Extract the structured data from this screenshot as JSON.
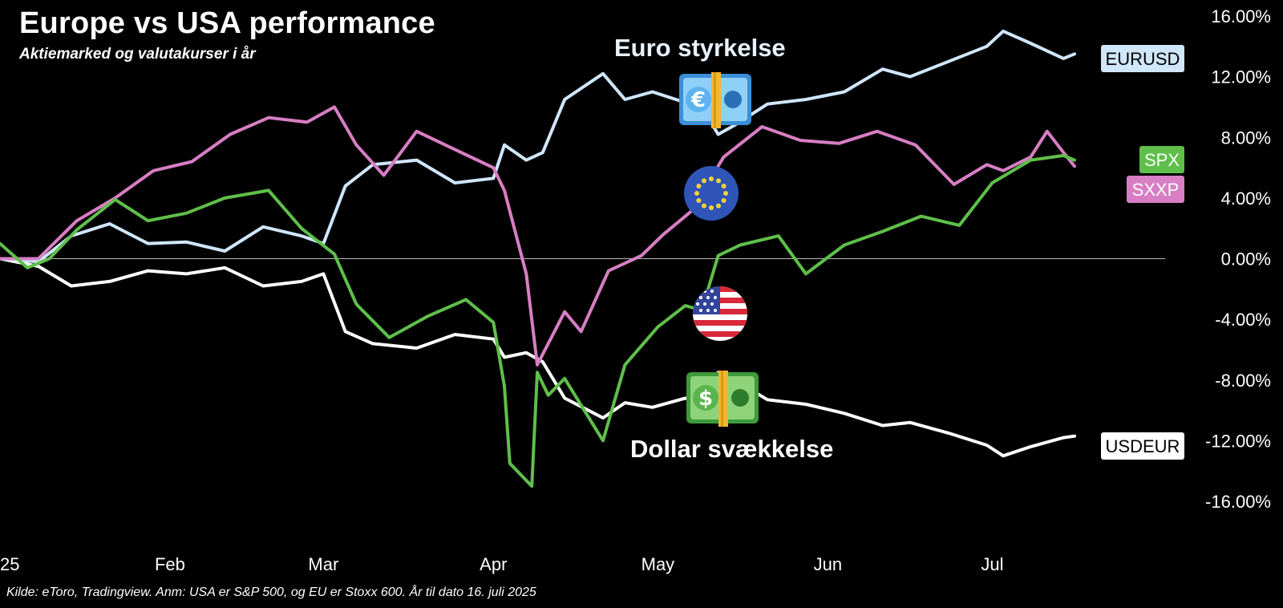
{
  "header": {
    "title": "Europe vs USA performance",
    "subtitle": "Aktiemarked og valutakurser i år"
  },
  "annotations": {
    "euro": "Euro styrkelse",
    "dollar": "Dollar svækkelse"
  },
  "icons": [
    "euro-banknote-icon",
    "eu-flag-icon",
    "us-flag-icon",
    "dollar-banknote-icon"
  ],
  "colors": {
    "background": "#000000",
    "EURUSD": "#cfe6fb",
    "USDEUR": "#ffffff",
    "SPX": "#5fbf4a",
    "SXXP": "#d77ec4",
    "zero_line": "#bbbbbb"
  },
  "footer": {
    "source": "Kilde: eToro, Tradingview. Anm: USA er S&P 500, og EU er Stoxx 600. År til dato 16. juli 2025"
  },
  "chart_data": {
    "type": "line",
    "title": "Europe vs USA performance",
    "subtitle": "Aktiemarked og valutakurser i år",
    "x_unit": "date",
    "x_ticks": [
      {
        "date": "2025-01-01",
        "label": "25"
      },
      {
        "date": "2025-02-01",
        "label": "Feb"
      },
      {
        "date": "2025-03-01",
        "label": "Mar"
      },
      {
        "date": "2025-04-01",
        "label": "Apr"
      },
      {
        "date": "2025-05-01",
        "label": "May"
      },
      {
        "date": "2025-06-01",
        "label": "Jun"
      },
      {
        "date": "2025-07-01",
        "label": "Jul"
      }
    ],
    "y_ticks": [
      "16.00%",
      "12.00%",
      "8.00%",
      "4.00%",
      "0.00%",
      "-4.00%",
      "-8.00%",
      "-12.00%",
      "-16.00%"
    ],
    "y_tick_values": [
      16,
      12,
      8,
      4,
      0,
      -4,
      -8,
      -12,
      -16
    ],
    "ylim": [
      -17,
      16
    ],
    "y_unit": "%",
    "grid": false,
    "zero_line": true,
    "series": [
      {
        "name": "EURUSD",
        "label": "EURUSD",
        "x": [
          "2025-01-01",
          "2025-01-08",
          "2025-01-14",
          "2025-01-21",
          "2025-01-28",
          "2025-02-04",
          "2025-02-11",
          "2025-02-18",
          "2025-02-25",
          "2025-03-01",
          "2025-03-05",
          "2025-03-10",
          "2025-03-18",
          "2025-03-25",
          "2025-04-01",
          "2025-04-03",
          "2025-04-07",
          "2025-04-10",
          "2025-04-14",
          "2025-04-21",
          "2025-04-25",
          "2025-04-30",
          "2025-05-06",
          "2025-05-08",
          "2025-05-12",
          "2025-05-15",
          "2025-05-21",
          "2025-05-28",
          "2025-06-04",
          "2025-06-11",
          "2025-06-16",
          "2025-06-23",
          "2025-06-30",
          "2025-07-03",
          "2025-07-08",
          "2025-07-14",
          "2025-07-16"
        ],
        "y": [
          0.0,
          -0.2,
          1.5,
          2.3,
          1.0,
          1.1,
          0.5,
          2.1,
          1.5,
          1.0,
          4.8,
          6.2,
          6.5,
          5.0,
          5.3,
          7.5,
          6.5,
          7.0,
          10.5,
          12.2,
          10.5,
          11.0,
          10.3,
          10.6,
          8.2,
          8.8,
          10.2,
          10.5,
          11.0,
          12.5,
          12.0,
          13.0,
          14.0,
          15.0,
          14.2,
          13.2,
          13.5
        ]
      },
      {
        "name": "USDEUR",
        "label": "USDEUR",
        "x": [
          "2025-01-01",
          "2025-01-08",
          "2025-01-14",
          "2025-01-21",
          "2025-01-28",
          "2025-02-04",
          "2025-02-11",
          "2025-02-18",
          "2025-02-25",
          "2025-03-01",
          "2025-03-05",
          "2025-03-10",
          "2025-03-18",
          "2025-03-25",
          "2025-04-01",
          "2025-04-03",
          "2025-04-07",
          "2025-04-10",
          "2025-04-14",
          "2025-04-21",
          "2025-04-25",
          "2025-04-30",
          "2025-05-06",
          "2025-05-08",
          "2025-05-12",
          "2025-05-15",
          "2025-05-21",
          "2025-05-28",
          "2025-06-04",
          "2025-06-11",
          "2025-06-16",
          "2025-06-23",
          "2025-06-30",
          "2025-07-03",
          "2025-07-08",
          "2025-07-14",
          "2025-07-16"
        ],
        "y": [
          0.0,
          -0.5,
          -1.8,
          -1.5,
          -0.8,
          -1.0,
          -0.6,
          -1.8,
          -1.5,
          -1.0,
          -4.8,
          -5.6,
          -5.9,
          -5.0,
          -5.3,
          -6.5,
          -6.2,
          -6.8,
          -9.2,
          -10.5,
          -9.5,
          -9.8,
          -9.2,
          -9.4,
          -7.5,
          -8.0,
          -9.3,
          -9.6,
          -10.2,
          -11.0,
          -10.8,
          -11.5,
          -12.3,
          -13.0,
          -12.4,
          -11.8,
          -11.7
        ]
      },
      {
        "name": "SPX",
        "label": "SPX",
        "x": [
          "2025-01-01",
          "2025-01-06",
          "2025-01-10",
          "2025-01-15",
          "2025-01-22",
          "2025-01-28",
          "2025-02-04",
          "2025-02-11",
          "2025-02-19",
          "2025-02-25",
          "2025-03-03",
          "2025-03-07",
          "2025-03-13",
          "2025-03-20",
          "2025-03-27",
          "2025-04-01",
          "2025-04-03",
          "2025-04-04",
          "2025-04-08",
          "2025-04-09",
          "2025-04-11",
          "2025-04-14",
          "2025-04-21",
          "2025-04-25",
          "2025-05-01",
          "2025-05-06",
          "2025-05-09",
          "2025-05-12",
          "2025-05-16",
          "2025-05-23",
          "2025-05-28",
          "2025-06-04",
          "2025-06-11",
          "2025-06-18",
          "2025-06-25",
          "2025-07-01",
          "2025-07-08",
          "2025-07-14",
          "2025-07-16"
        ],
        "y": [
          1.0,
          -0.6,
          0.0,
          1.9,
          3.9,
          2.5,
          3.0,
          4.0,
          4.5,
          2.0,
          0.3,
          -3.0,
          -5.2,
          -3.8,
          -2.7,
          -4.2,
          -8.4,
          -13.5,
          -15.0,
          -7.5,
          -9.0,
          -7.9,
          -12.0,
          -7.0,
          -4.5,
          -3.1,
          -3.4,
          0.2,
          0.9,
          1.5,
          -1.0,
          0.9,
          1.8,
          2.8,
          2.2,
          5.0,
          6.5,
          6.8,
          6.5
        ]
      },
      {
        "name": "SXXP",
        "label": "SXXP",
        "x": [
          "2025-01-01",
          "2025-01-08",
          "2025-01-15",
          "2025-01-22",
          "2025-01-29",
          "2025-02-05",
          "2025-02-12",
          "2025-02-19",
          "2025-02-26",
          "2025-03-03",
          "2025-03-07",
          "2025-03-12",
          "2025-03-18",
          "2025-03-25",
          "2025-04-01",
          "2025-04-03",
          "2025-04-07",
          "2025-04-09",
          "2025-04-14",
          "2025-04-17",
          "2025-04-22",
          "2025-04-28",
          "2025-05-02",
          "2025-05-07",
          "2025-05-13",
          "2025-05-20",
          "2025-05-27",
          "2025-06-03",
          "2025-06-10",
          "2025-06-17",
          "2025-06-24",
          "2025-06-30",
          "2025-07-03",
          "2025-07-08",
          "2025-07-11",
          "2025-07-14",
          "2025-07-16"
        ],
        "y": [
          0.0,
          0.0,
          2.5,
          4.0,
          5.8,
          6.4,
          8.2,
          9.3,
          9.0,
          10.0,
          7.5,
          5.5,
          8.4,
          7.2,
          6.0,
          4.5,
          -1.0,
          -7.0,
          -3.5,
          -4.8,
          -0.8,
          0.2,
          1.6,
          3.1,
          6.7,
          8.7,
          7.8,
          7.6,
          8.4,
          7.5,
          4.9,
          6.2,
          5.8,
          6.7,
          8.4,
          7.0,
          6.1
        ]
      }
    ],
    "series_end_labels": [
      "EURUSD",
      "SPX",
      "SXXP",
      "USDEUR"
    ]
  }
}
